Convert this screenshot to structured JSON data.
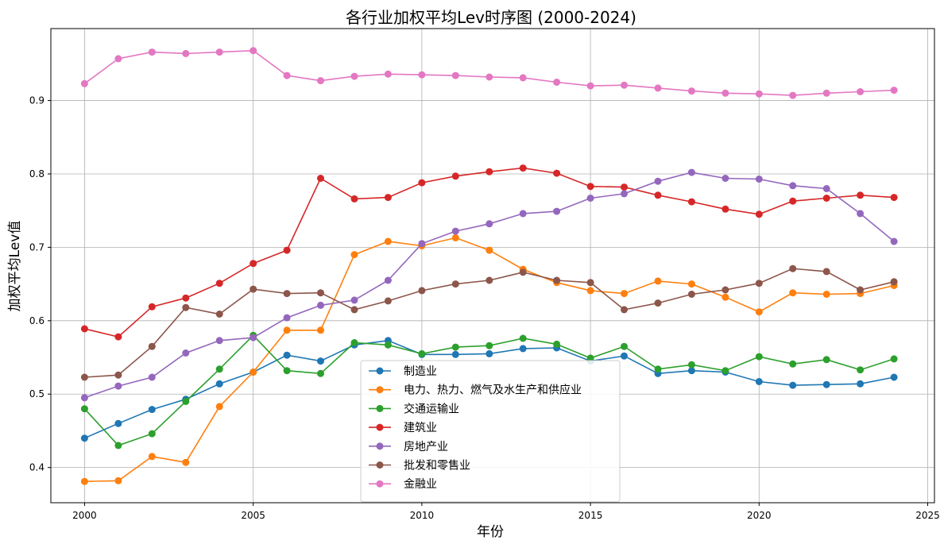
{
  "chart_data": {
    "type": "line",
    "title": "各行业加权平均Lev时序图 (2000-2024)",
    "xlabel": "年份",
    "ylabel": "加权平均Lev值",
    "xlim": [
      1999,
      2025.2
    ],
    "ylim": [
      0.352,
      0.998
    ],
    "xticks": [
      2000,
      2005,
      2010,
      2015,
      2020,
      2025
    ],
    "yticks": [
      0.4,
      0.5,
      0.6,
      0.7,
      0.8,
      0.9
    ],
    "grid": true,
    "legend_position": "lower-center",
    "x": [
      2000,
      2001,
      2002,
      2003,
      2004,
      2005,
      2006,
      2007,
      2008,
      2009,
      2010,
      2011,
      2012,
      2013,
      2014,
      2015,
      2016,
      2017,
      2018,
      2019,
      2020,
      2021,
      2022,
      2023,
      2024
    ],
    "series": [
      {
        "name": "制造业",
        "color": "#1f77b4",
        "values": [
          0.44,
          0.46,
          0.479,
          0.493,
          0.514,
          0.53,
          0.553,
          0.545,
          0.567,
          0.573,
          0.554,
          0.554,
          0.555,
          0.562,
          0.563,
          0.545,
          0.552,
          0.528,
          0.532,
          0.53,
          0.517,
          0.512,
          0.513,
          0.514,
          0.523
        ]
      },
      {
        "name": "电力、热力、燃气及水生产和供应业",
        "color": "#ff7f0e",
        "values": [
          0.381,
          0.382,
          0.415,
          0.407,
          0.483,
          0.53,
          0.587,
          0.587,
          0.69,
          0.708,
          0.702,
          0.713,
          0.696,
          0.67,
          0.652,
          0.641,
          0.637,
          0.654,
          0.65,
          0.632,
          0.612,
          0.638,
          0.636,
          0.637,
          0.648
        ]
      },
      {
        "name": "交通运输业",
        "color": "#2ca02c",
        "values": [
          0.48,
          0.43,
          0.446,
          0.49,
          0.534,
          0.58,
          0.532,
          0.528,
          0.57,
          0.567,
          0.555,
          0.564,
          0.566,
          0.576,
          0.568,
          0.549,
          0.565,
          0.534,
          0.54,
          0.532,
          0.551,
          0.541,
          0.547,
          0.533,
          0.548
        ]
      },
      {
        "name": "建筑业",
        "color": "#d62728",
        "values": [
          0.589,
          0.578,
          0.619,
          0.631,
          0.651,
          0.678,
          0.696,
          0.794,
          0.766,
          0.768,
          0.788,
          0.797,
          0.803,
          0.808,
          0.801,
          0.783,
          0.782,
          0.771,
          0.762,
          0.752,
          0.745,
          0.763,
          0.767,
          0.771,
          0.768
        ]
      },
      {
        "name": "房地产业",
        "color": "#9467bd",
        "values": [
          0.495,
          0.511,
          0.523,
          0.556,
          0.573,
          0.577,
          0.604,
          0.621,
          0.628,
          0.655,
          0.705,
          0.722,
          0.732,
          0.746,
          0.749,
          0.767,
          0.773,
          0.79,
          0.802,
          0.794,
          0.793,
          0.784,
          0.78,
          0.746,
          0.708
        ]
      },
      {
        "name": "批发和零售业",
        "color": "#8c564b",
        "values": [
          0.523,
          0.526,
          0.565,
          0.618,
          0.609,
          0.643,
          0.637,
          0.638,
          0.615,
          0.627,
          0.641,
          0.65,
          0.655,
          0.666,
          0.655,
          0.652,
          0.615,
          0.624,
          0.636,
          0.642,
          0.651,
          0.671,
          0.667,
          0.642,
          0.653
        ]
      },
      {
        "name": "金融业",
        "color": "#e377c2",
        "values": [
          0.923,
          0.957,
          0.966,
          0.964,
          0.966,
          0.968,
          0.934,
          0.927,
          0.933,
          0.936,
          0.935,
          0.934,
          0.932,
          0.931,
          0.925,
          0.92,
          0.921,
          0.917,
          0.913,
          0.91,
          0.909,
          0.907,
          0.91,
          0.912,
          0.914
        ]
      }
    ]
  }
}
